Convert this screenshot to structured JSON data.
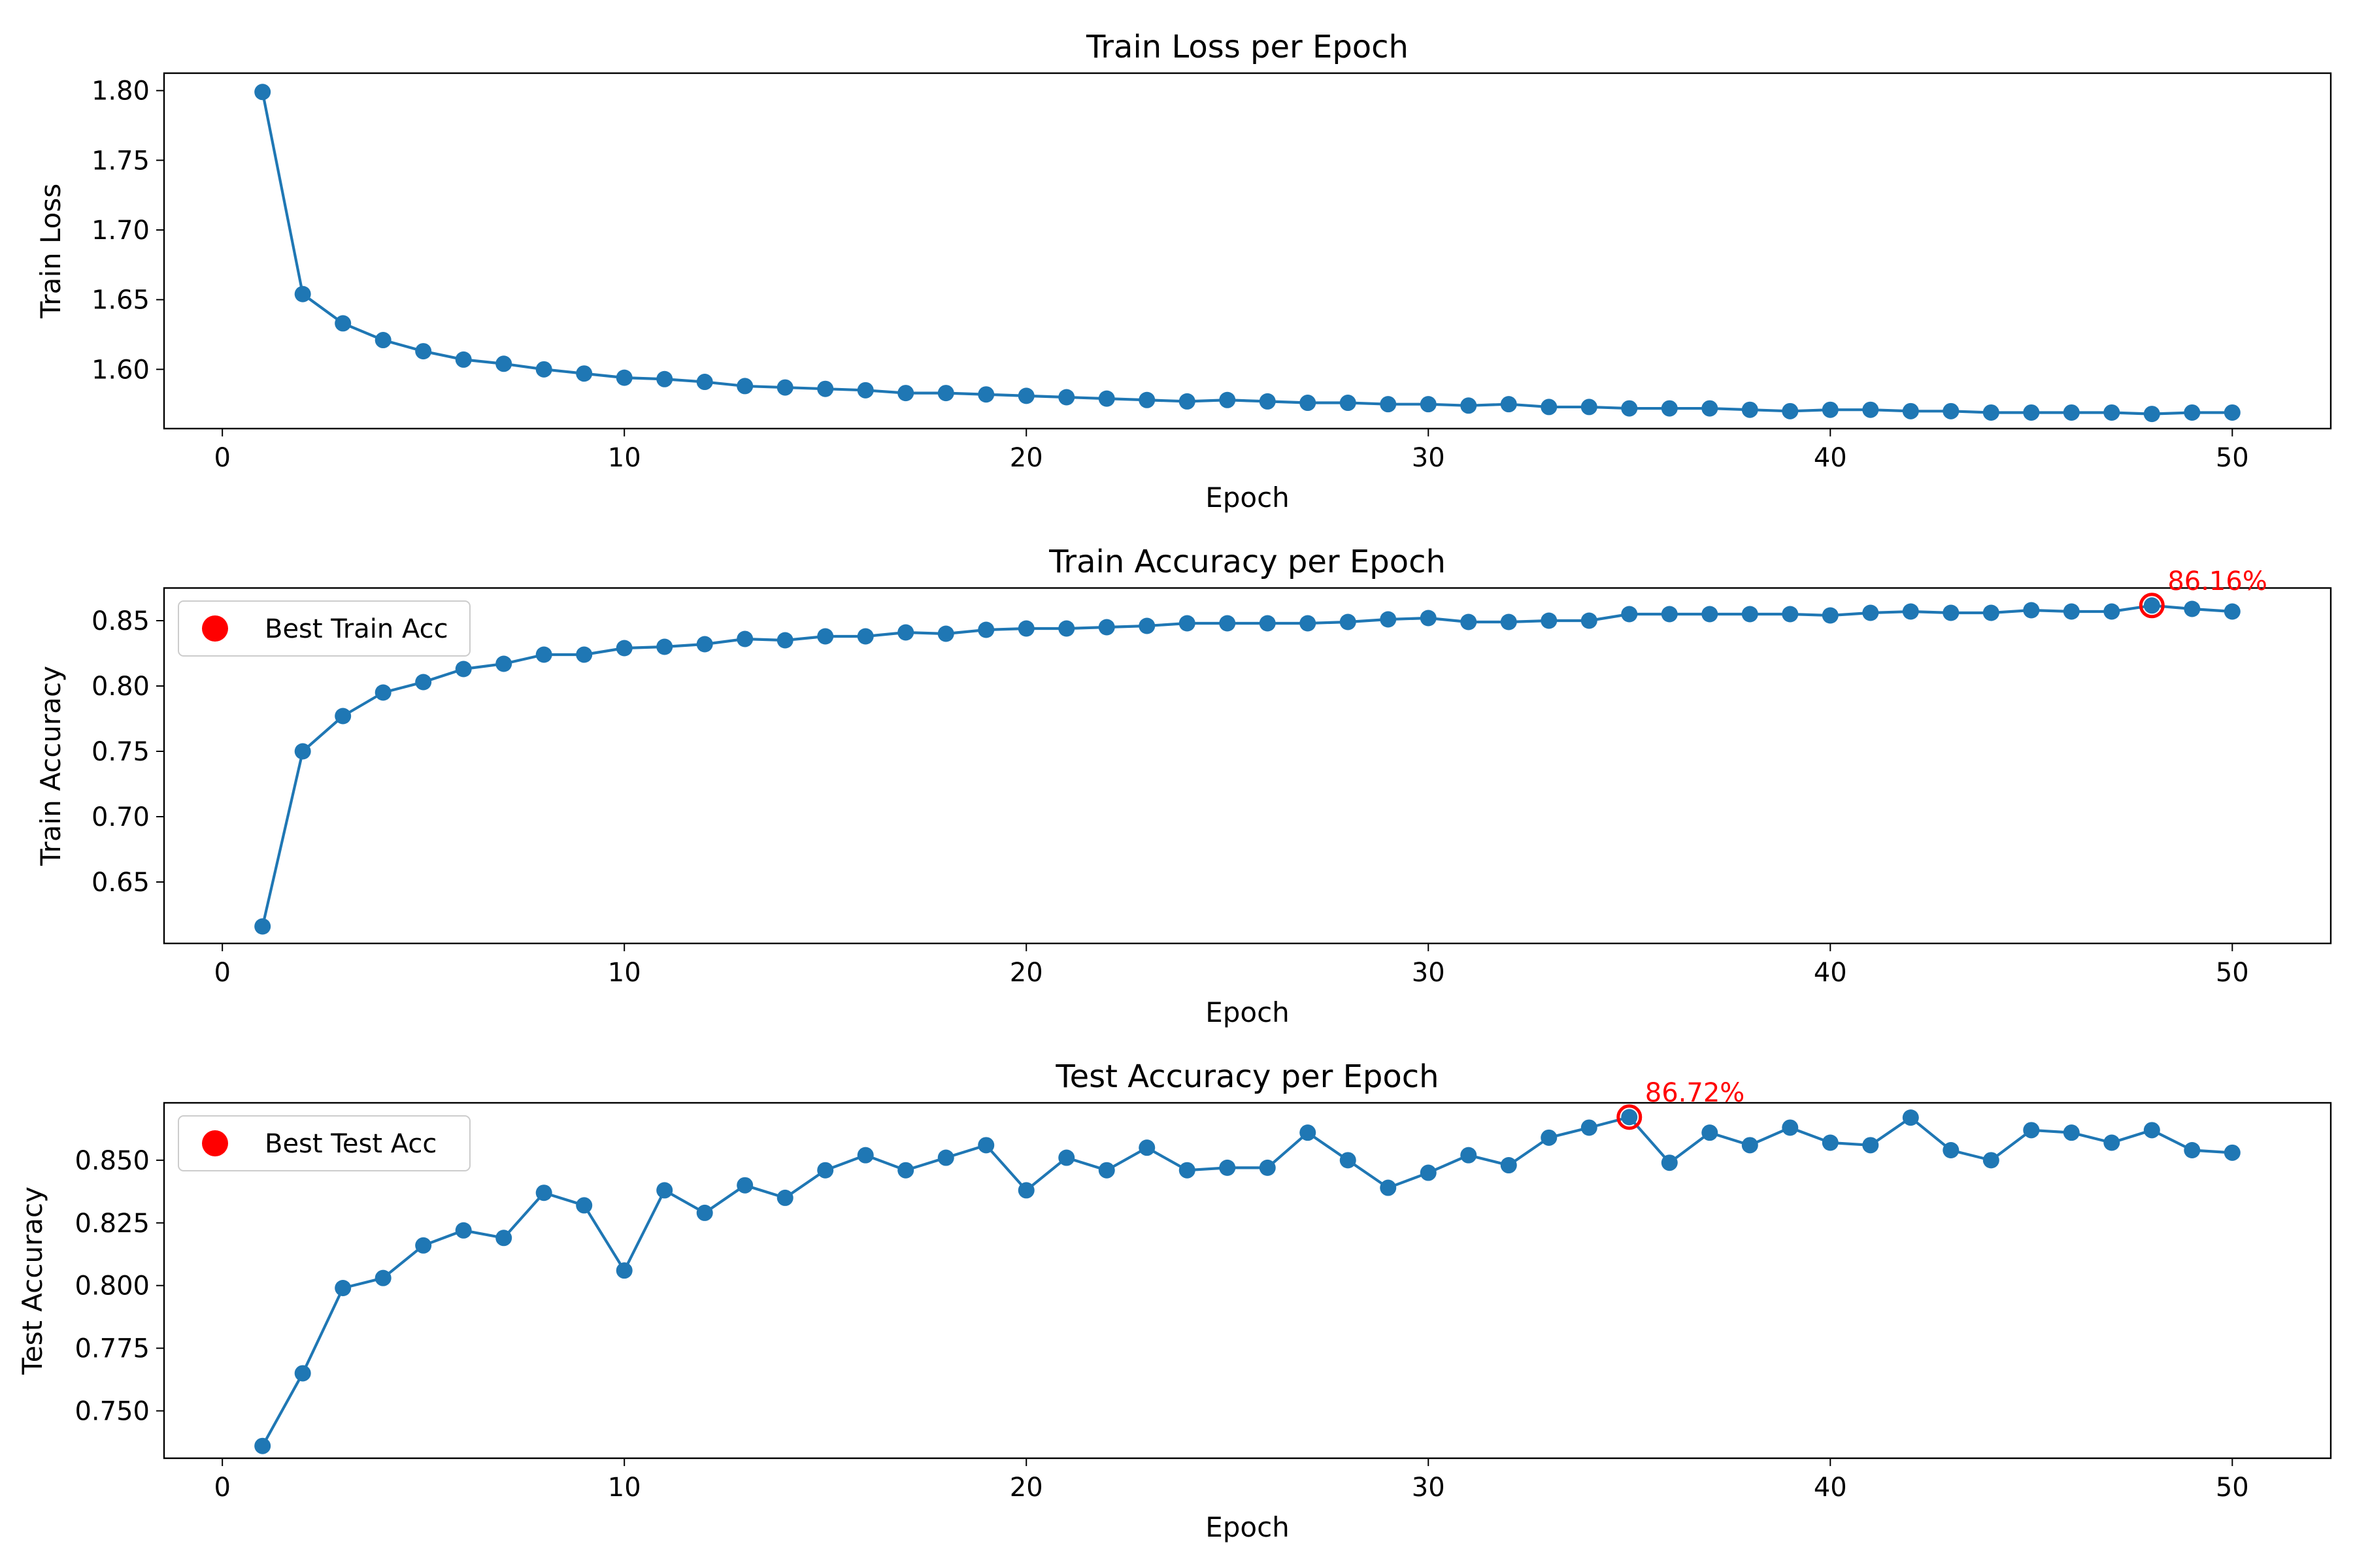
{
  "colors": {
    "series": "#1f77b4",
    "best_marker": "#ff0000",
    "annotation": "#ff0000",
    "axis": "#000000",
    "legend_border": "#cccccc",
    "background": "#ffffff"
  },
  "chart_data": [
    {
      "type": "line",
      "title": "Train Loss per Epoch",
      "xlabel": "Epoch",
      "ylabel": "Train Loss",
      "xlim": [
        -1.45,
        52.45
      ],
      "ylim": [
        1.5575,
        1.8125
      ],
      "xticks": [
        0,
        10,
        20,
        30,
        40,
        50
      ],
      "xtick_labels": [
        "0",
        "10",
        "20",
        "30",
        "40",
        "50"
      ],
      "yticks": [
        1.6,
        1.65,
        1.7,
        1.75,
        1.8
      ],
      "ytick_labels": [
        "1.60",
        "1.65",
        "1.70",
        "1.75",
        "1.80"
      ],
      "grid": false,
      "legend": null,
      "series": [
        {
          "x": [
            1,
            2,
            3,
            4,
            5,
            6,
            7,
            8,
            9,
            10,
            11,
            12,
            13,
            14,
            15,
            16,
            17,
            18,
            19,
            20,
            21,
            22,
            23,
            24,
            25,
            26,
            27,
            28,
            29,
            30,
            31,
            32,
            33,
            34,
            35,
            36,
            37,
            38,
            39,
            40,
            41,
            42,
            43,
            44,
            45,
            46,
            47,
            48,
            49,
            50
          ],
          "y": [
            1.799,
            1.654,
            1.633,
            1.621,
            1.613,
            1.607,
            1.604,
            1.6,
            1.597,
            1.594,
            1.593,
            1.591,
            1.588,
            1.587,
            1.586,
            1.585,
            1.583,
            1.583,
            1.582,
            1.581,
            1.58,
            1.579,
            1.578,
            1.577,
            1.578,
            1.577,
            1.576,
            1.576,
            1.575,
            1.575,
            1.574,
            1.575,
            1.573,
            1.573,
            1.572,
            1.572,
            1.572,
            1.571,
            1.57,
            1.571,
            1.571,
            1.57,
            1.57,
            1.569,
            1.569,
            1.569,
            1.569,
            1.568,
            1.569,
            1.569
          ]
        }
      ]
    },
    {
      "type": "line",
      "title": "Train Accuracy per Epoch",
      "xlabel": "Epoch",
      "ylabel": "Train Accuracy",
      "xlim": [
        -1.45,
        52.45
      ],
      "ylim": [
        0.603,
        0.875
      ],
      "xticks": [
        0,
        10,
        20,
        30,
        40,
        50
      ],
      "xtick_labels": [
        "0",
        "10",
        "20",
        "30",
        "40",
        "50"
      ],
      "yticks": [
        0.65,
        0.7,
        0.75,
        0.8,
        0.85
      ],
      "ytick_labels": [
        "0.65",
        "0.70",
        "0.75",
        "0.80",
        "0.85"
      ],
      "grid": false,
      "legend": "upper left",
      "series": [
        {
          "x": [
            1,
            2,
            3,
            4,
            5,
            6,
            7,
            8,
            9,
            10,
            11,
            12,
            13,
            14,
            15,
            16,
            17,
            18,
            19,
            20,
            21,
            22,
            23,
            24,
            25,
            26,
            27,
            28,
            29,
            30,
            31,
            32,
            33,
            34,
            35,
            36,
            37,
            38,
            39,
            40,
            41,
            42,
            43,
            44,
            45,
            46,
            47,
            48,
            49,
            50
          ],
          "y": [
            0.616,
            0.75,
            0.777,
            0.795,
            0.803,
            0.813,
            0.817,
            0.824,
            0.824,
            0.829,
            0.83,
            0.832,
            0.836,
            0.835,
            0.838,
            0.838,
            0.841,
            0.84,
            0.843,
            0.844,
            0.844,
            0.845,
            0.846,
            0.848,
            0.848,
            0.848,
            0.848,
            0.849,
            0.851,
            0.852,
            0.849,
            0.849,
            0.85,
            0.85,
            0.855,
            0.855,
            0.855,
            0.855,
            0.855,
            0.854,
            0.856,
            0.857,
            0.856,
            0.856,
            0.858,
            0.857,
            0.857,
            0.8616,
            0.859,
            0.857
          ]
        }
      ],
      "best": {
        "label": "Best Train Acc",
        "x": 48,
        "y": 0.8616,
        "text": "86.16%"
      }
    },
    {
      "type": "line",
      "title": "Test Accuracy per Epoch",
      "xlabel": "Epoch",
      "ylabel": "Test Accuracy",
      "xlim": [
        -1.45,
        52.45
      ],
      "ylim": [
        0.7311,
        0.8729
      ],
      "xticks": [
        0,
        10,
        20,
        30,
        40,
        50
      ],
      "xtick_labels": [
        "0",
        "10",
        "20",
        "30",
        "40",
        "50"
      ],
      "yticks": [
        0.75,
        0.775,
        0.8,
        0.825,
        0.85
      ],
      "ytick_labels": [
        "0.750",
        "0.775",
        "0.800",
        "0.825",
        "0.850"
      ],
      "grid": false,
      "legend": "upper left",
      "series": [
        {
          "x": [
            1,
            2,
            3,
            4,
            5,
            6,
            7,
            8,
            9,
            10,
            11,
            12,
            13,
            14,
            15,
            16,
            17,
            18,
            19,
            20,
            21,
            22,
            23,
            24,
            25,
            26,
            27,
            28,
            29,
            30,
            31,
            32,
            33,
            34,
            35,
            36,
            37,
            38,
            39,
            40,
            41,
            42,
            43,
            44,
            45,
            46,
            47,
            48,
            49,
            50
          ],
          "y": [
            0.736,
            0.765,
            0.799,
            0.803,
            0.816,
            0.822,
            0.819,
            0.837,
            0.832,
            0.806,
            0.838,
            0.829,
            0.84,
            0.835,
            0.846,
            0.852,
            0.846,
            0.851,
            0.856,
            0.838,
            0.851,
            0.846,
            0.855,
            0.846,
            0.847,
            0.847,
            0.861,
            0.85,
            0.839,
            0.845,
            0.852,
            0.848,
            0.859,
            0.863,
            0.8672,
            0.849,
            0.861,
            0.856,
            0.863,
            0.857,
            0.856,
            0.867,
            0.854,
            0.85,
            0.862,
            0.861,
            0.857,
            0.862,
            0.854,
            0.853
          ]
        }
      ],
      "best": {
        "label": "Best Test Acc",
        "x": 35,
        "y": 0.8672,
        "text": "86.72%"
      }
    }
  ]
}
